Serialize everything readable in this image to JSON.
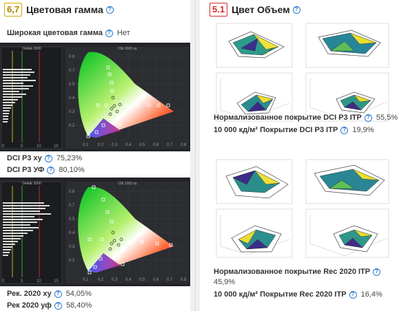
{
  "left_panel": {
    "score": "6,7",
    "title": "Цветовая гамма",
    "wide_gamut": {
      "label": "Широкая цветовая гамма",
      "value": "Нет"
    },
    "chart1": {
      "delta_title": "DeltaE 2000",
      "cie_title": "CIE 1931 xy"
    },
    "chart2": {
      "delta_title": "DeltaE 2000",
      "cie_title": "CIE 1931 xy"
    },
    "dci_xy": {
      "label": "DCI P3 xy",
      "value": "75,23%"
    },
    "dci_uv": {
      "label": "DCI P3 УФ",
      "value": "80,10%"
    },
    "rec_xy": {
      "label": "Рек. 2020 xy",
      "value": "54,05%"
    },
    "rec_uv": {
      "label": "Рек 2020 уф",
      "value": "58,40%"
    }
  },
  "right_panel": {
    "score": "5.1",
    "title": "Цвет Объем",
    "dci_norm": {
      "label": "Нормализованное покрытие DCI P3 ITP",
      "value": "55,5%"
    },
    "dci_10000": {
      "label": "10 000 кд/м² Покрытие DCI P3 ITP",
      "value": "19,9%"
    },
    "rec_norm": {
      "label": "Нормализованное покрытие Rec 2020 ITP",
      "value": "45,9%"
    },
    "rec_10000": {
      "label": "10 000 кд/м² Покрытие Rec 2020 ITP",
      "value": "16,4%"
    }
  },
  "colors": {
    "accent": "#2a7bd1",
    "score_yellow": "#d4a800",
    "score_red": "#d22a2a"
  },
  "icons": [
    "help-icon"
  ]
}
